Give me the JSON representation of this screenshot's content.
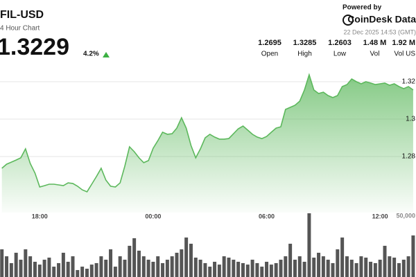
{
  "chart_data": {
    "type": "line",
    "title": "FIL-USD",
    "subtitle": "4 Hour Chart",
    "price": "1.3229",
    "change": "4.2%",
    "stats": [
      {
        "value": "1.2695",
        "label": "Open"
      },
      {
        "value": "1.3285",
        "label": "High"
      },
      {
        "value": "1.2603",
        "label": "Low"
      },
      {
        "value": "1.48 M",
        "label": "Vol"
      },
      {
        "value": "1.92 M",
        "label": "Vol US"
      }
    ],
    "powered_by": "Powered by",
    "brand": "CoinDesk Data",
    "timestamp": "22 Dec 2025 14:53 (GMT)",
    "x": [
      16,
      16.25,
      16.5,
      16.75,
      17,
      17.25,
      17.5,
      17.75,
      18,
      18.25,
      18.5,
      18.75,
      19,
      19.25,
      19.5,
      19.75,
      20,
      20.25,
      20.5,
      20.75,
      21,
      21.25,
      21.5,
      21.75,
      22,
      22.25,
      22.5,
      22.75,
      23,
      23.25,
      23.5,
      23.75,
      24,
      24.25,
      24.5,
      24.75,
      25,
      25.25,
      25.5,
      25.75,
      26,
      26.25,
      26.5,
      26.75,
      27,
      27.25,
      27.5,
      27.75,
      28,
      28.25,
      28.5,
      28.75,
      29,
      29.25,
      29.5,
      29.75,
      30,
      30.25,
      30.5,
      30.75,
      31,
      31.25,
      31.5,
      31.75,
      32,
      32.25,
      32.5,
      32.75,
      33,
      33.25,
      33.5,
      33.75,
      34,
      34.25,
      34.5,
      34.75,
      35,
      35.25,
      35.5,
      35.75,
      36,
      36.25,
      36.5,
      36.75,
      37,
      37.25,
      37.5,
      37.75
    ],
    "xlim": [
      15.9,
      37.9
    ],
    "xticks": [
      {
        "value": 18,
        "label": "18:00"
      },
      {
        "value": 24,
        "label": "00:00"
      },
      {
        "value": 30,
        "label": "06:00"
      },
      {
        "value": 36,
        "label": "12:00"
      }
    ],
    "ylim": [
      1.25,
      1.33
    ],
    "yticks": [
      1.28,
      1.3,
      1.32
    ],
    "y2lim": [
      0,
      60000
    ],
    "y2ticks": [
      {
        "value": 50000,
        "label": "50,000"
      }
    ],
    "series": [
      {
        "color": "#5cb85c",
        "values": [
          1.2737,
          1.2759,
          1.277,
          1.2781,
          1.2793,
          1.2841,
          1.2763,
          1.2711,
          1.2637,
          1.2644,
          1.2652,
          1.2652,
          1.2648,
          1.2644,
          1.2659,
          1.2656,
          1.2641,
          1.2622,
          1.2611,
          1.2652,
          1.2693,
          1.2737,
          1.2674,
          1.2641,
          1.2637,
          1.2659,
          1.2748,
          1.2852,
          1.2826,
          1.2793,
          1.2767,
          1.2778,
          1.2844,
          1.2885,
          1.293,
          1.2919,
          1.2922,
          1.2952,
          1.3007,
          1.2952,
          1.2859,
          1.2793,
          1.2841,
          1.29,
          1.2919,
          1.2904,
          1.2893,
          1.2893,
          1.2896,
          1.2922,
          1.2948,
          1.2963,
          1.2941,
          1.2919,
          1.2904,
          1.2896,
          1.2907,
          1.293,
          1.2952,
          1.2959,
          1.3052,
          1.3063,
          1.3074,
          1.3096,
          1.3156,
          1.3237,
          1.3156,
          1.3137,
          1.3144,
          1.3126,
          1.3115,
          1.3126,
          1.3174,
          1.3185,
          1.3215,
          1.32,
          1.3189,
          1.32,
          1.3193,
          1.3185,
          1.3189,
          1.3193,
          1.3181,
          1.3189,
          1.3174,
          1.3163,
          1.3174,
          1.3156
        ]
      },
      {
        "type": "bar",
        "axis": "y2",
        "color": "#555555",
        "values": [
          22700,
          17000,
          11400,
          19900,
          14200,
          22700,
          17000,
          12500,
          10200,
          14200,
          15900,
          8500,
          11400,
          19900,
          12500,
          17000,
          5700,
          8500,
          6800,
          10200,
          11400,
          17000,
          14200,
          22700,
          8500,
          17000,
          14200,
          25600,
          31800,
          21600,
          17000,
          14200,
          12500,
          17000,
          11400,
          14200,
          17000,
          19900,
          22700,
          32400,
          27300,
          15900,
          14200,
          11400,
          8500,
          12500,
          10200,
          17000,
          15900,
          14200,
          12500,
          11400,
          10200,
          14200,
          11400,
          8500,
          12500,
          10200,
          11400,
          14200,
          17000,
          27300,
          14200,
          17000,
          12500,
          52300,
          15900,
          19900,
          17000,
          14200,
          11400,
          22700,
          32400,
          17000,
          14200,
          11400,
          17000,
          15900,
          12500,
          11400,
          14200,
          25600,
          17000,
          15900,
          11400,
          14200,
          17000,
          34100
        ]
      }
    ]
  }
}
